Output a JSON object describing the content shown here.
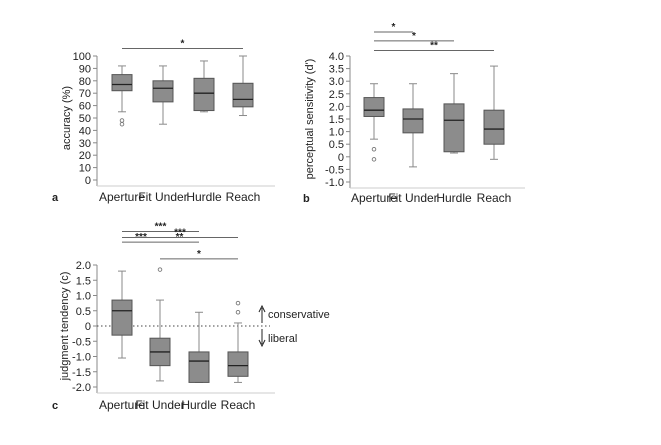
{
  "chart_data": [
    {
      "type": "box",
      "panel": "a",
      "ylabel": "accuracy (%)",
      "ylim": [
        0,
        100
      ],
      "yticks": [
        0,
        10,
        20,
        30,
        40,
        50,
        60,
        70,
        80,
        90,
        100
      ],
      "categories": [
        "Aperture",
        "Fit Under",
        "Hurdle",
        "Reach"
      ],
      "boxes": [
        {
          "whisker_low": 55,
          "q1": 72,
          "median": 77,
          "q3": 85,
          "whisker_high": 92,
          "outliers": [
            48,
            45
          ]
        },
        {
          "whisker_low": 45,
          "q1": 63,
          "median": 74,
          "q3": 80,
          "whisker_high": 92,
          "outliers": []
        },
        {
          "whisker_low": 55,
          "q1": 56,
          "median": 70,
          "q3": 82,
          "whisker_high": 96,
          "outliers": []
        },
        {
          "whisker_low": 52,
          "q1": 59,
          "median": 65,
          "q3": 78,
          "whisker_high": 100,
          "outliers": []
        }
      ],
      "significance": [
        {
          "from": 0,
          "to": 3,
          "y": 106,
          "label": "*"
        }
      ]
    },
    {
      "type": "box",
      "panel": "b",
      "ylabel": "perceptual sensitivity (d')",
      "ylim": [
        -1.0,
        4.0
      ],
      "yticks": [
        -1.0,
        -0.5,
        0,
        0.5,
        1.0,
        1.5,
        2.0,
        2.5,
        3.0,
        3.5,
        4.0
      ],
      "yticklabels": [
        "-1.0",
        "-0.5",
        "0",
        "0.5",
        "1.0",
        "1.5",
        "2.0",
        "2.5",
        "3.0",
        "3.5",
        "4.0"
      ],
      "categories": [
        "Aperture",
        "Fit Under",
        "Hurdle",
        "Reach"
      ],
      "boxes": [
        {
          "whisker_low": 0.7,
          "q1": 1.6,
          "median": 1.85,
          "q3": 2.35,
          "whisker_high": 2.9,
          "outliers": [
            0.3,
            -0.1
          ]
        },
        {
          "whisker_low": -0.4,
          "q1": 0.95,
          "median": 1.5,
          "q3": 1.9,
          "whisker_high": 2.9,
          "outliers": []
        },
        {
          "whisker_low": 0.15,
          "q1": 0.2,
          "median": 1.45,
          "q3": 2.1,
          "whisker_high": 3.3,
          "outliers": []
        },
        {
          "whisker_low": -0.1,
          "q1": 0.5,
          "median": 1.1,
          "q3": 1.85,
          "whisker_high": 3.6,
          "outliers": []
        }
      ],
      "significance": [
        {
          "from": 0,
          "to": 1,
          "y": 4.95,
          "label": "*"
        },
        {
          "from": 0,
          "to": 2,
          "y": 4.6,
          "label": "*"
        },
        {
          "from": 0,
          "to": 3,
          "y": 4.22,
          "label": "**"
        }
      ]
    },
    {
      "type": "box",
      "panel": "c",
      "ylabel": "judgment tendency (c)",
      "ylim": [
        -2.0,
        2.0
      ],
      "yticks": [
        -2.0,
        -1.5,
        -1.0,
        -0.5,
        0,
        0.5,
        1.0,
        1.5,
        2.0
      ],
      "yticklabels": [
        "-2.0",
        "-1.5",
        "-1.0",
        "-0.5",
        "0",
        "0.5",
        "1.0",
        "1.5",
        "2.0"
      ],
      "categories": [
        "Aperture",
        "Fit Under",
        "Hurdle",
        "Reach"
      ],
      "boxes": [
        {
          "whisker_low": -1.05,
          "q1": -0.3,
          "median": 0.5,
          "q3": 0.85,
          "whisker_high": 1.8,
          "outliers": []
        },
        {
          "whisker_low": -1.8,
          "q1": -1.3,
          "median": -0.85,
          "q3": -0.4,
          "whisker_high": 0.85,
          "outliers": [
            1.85
          ]
        },
        {
          "whisker_low": -1.85,
          "q1": -1.85,
          "median": -1.15,
          "q3": -0.85,
          "whisker_high": 0.45,
          "outliers": []
        },
        {
          "whisker_low": -1.85,
          "q1": -1.65,
          "median": -1.3,
          "q3": -0.85,
          "whisker_high": 0.1,
          "outliers": [
            0.75,
            0.45
          ]
        }
      ],
      "significance": [
        {
          "from": 0,
          "to": 2,
          "y": 3.1,
          "label": "***"
        },
        {
          "from": 0,
          "to": 1,
          "y": 2.75,
          "label": "***"
        },
        {
          "from": 0,
          "to": 3,
          "y": 2.9,
          "label": "***"
        },
        {
          "from": 1,
          "to": 2,
          "y": 2.75,
          "label": "**"
        },
        {
          "from": 1,
          "to": 3,
          "y": 2.2,
          "label": "*"
        }
      ],
      "reference_line": 0,
      "annotations": {
        "up": "conservative",
        "down": "liberal"
      }
    }
  ],
  "colors": {
    "box_fill": "#8c8c8c",
    "box_stroke": "#555555",
    "median": "#222222",
    "whisker": "#8a8a8a",
    "axis": "#444444"
  }
}
